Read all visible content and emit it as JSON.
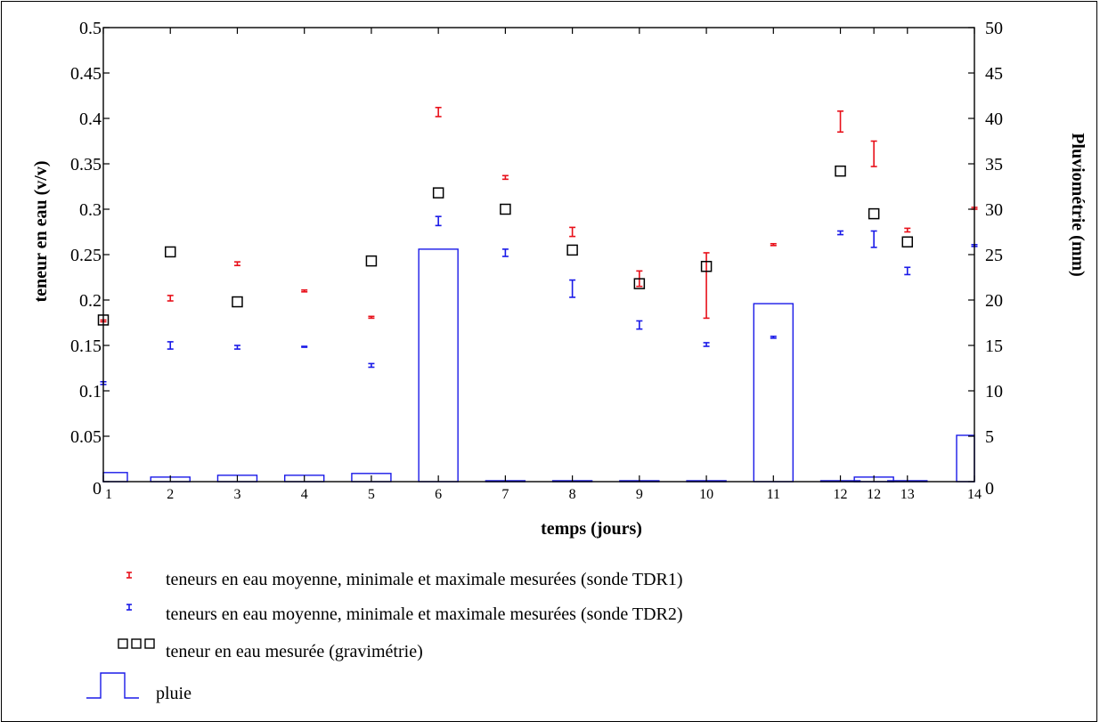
{
  "chart_data": {
    "type": "bar+errorbar+scatter",
    "xlabel": "temps (jours)",
    "ylabel": "teneur en eau (v/v)",
    "y2label": "Pluviométrie (mm)",
    "x_tick_labels": [
      "1",
      "2",
      "3",
      "4",
      "5",
      "6",
      "7",
      "8",
      "9",
      "10",
      "11",
      "12",
      "12",
      "13",
      "14"
    ],
    "ylim": [
      0,
      0.5
    ],
    "y_ticks": [
      "0",
      "0.05",
      "0.1",
      "0.15",
      "0.2",
      "0.25",
      "0.3",
      "0.35",
      "0.4",
      "0.45",
      "0.5"
    ],
    "y2lim": [
      0,
      50
    ],
    "y2_ticks": [
      "0",
      "5",
      "10",
      "15",
      "20",
      "25",
      "30",
      "35",
      "40",
      "45",
      "50"
    ],
    "series": [
      {
        "name": "teneurs en eau moyenne, minimale et maximale mesurées (sonde TDR1)",
        "kind": "errorbar",
        "color": "#e8101a",
        "x": [
          1,
          2,
          3,
          4,
          5,
          6,
          7,
          8,
          9,
          10,
          11,
          12,
          12.5,
          13,
          14
        ],
        "low": [
          0.176,
          0.199,
          0.238,
          0.209,
          0.18,
          0.402,
          0.333,
          0.27,
          0.215,
          0.18,
          0.26,
          0.385,
          0.347,
          0.275,
          0.3
        ],
        "high": [
          0.178,
          0.205,
          0.242,
          0.211,
          0.182,
          0.412,
          0.337,
          0.28,
          0.232,
          0.252,
          0.262,
          0.408,
          0.375,
          0.279,
          0.302
        ]
      },
      {
        "name": "teneurs en eau moyenne, minimale et maximale mesurées (sonde TDR2)",
        "kind": "errorbar",
        "color": "#1a1ae8",
        "x": [
          1,
          2,
          3,
          4,
          5,
          6,
          7,
          8,
          9,
          10,
          11,
          12,
          12.5,
          13,
          14
        ],
        "low": [
          0.107,
          0.146,
          0.146,
          0.148,
          0.126,
          0.282,
          0.248,
          0.203,
          0.168,
          0.149,
          0.158,
          0.272,
          0.258,
          0.228,
          0.259
        ],
        "high": [
          0.11,
          0.154,
          0.15,
          0.149,
          0.13,
          0.292,
          0.256,
          0.222,
          0.177,
          0.153,
          0.16,
          0.276,
          0.276,
          0.236,
          0.261
        ]
      },
      {
        "name": "teneur en eau mesurée (gravimétrie)",
        "kind": "scatter",
        "color": "#000000",
        "x": [
          1,
          2,
          3,
          5,
          6,
          7,
          8,
          9,
          10,
          12,
          12.5,
          13
        ],
        "y": [
          0.178,
          0.253,
          0.198,
          0.243,
          0.318,
          0.3,
          0.255,
          0.218,
          0.237,
          0.342,
          0.295,
          0.264
        ]
      },
      {
        "name": "pluie",
        "kind": "bar",
        "axis": "y2",
        "color": "#1a1ae8",
        "x": [
          1,
          2,
          3,
          4,
          5,
          6,
          7,
          8,
          9,
          10,
          11,
          12,
          12.5,
          13,
          14
        ],
        "values": [
          1.0,
          0.5,
          0.7,
          0.7,
          0.9,
          25.6,
          0.1,
          0.1,
          0.1,
          0.1,
          19.6,
          0.1,
          0.5,
          0.1,
          5.1
        ]
      }
    ],
    "legend": [
      {
        "label": "teneurs en eau moyenne, minimale et maximale mesurées (sonde TDR1)",
        "symbol": "errorbar",
        "color": "#e8101a"
      },
      {
        "label": "teneurs en eau moyenne, minimale et maximale mesurées (sonde TDR2)",
        "symbol": "errorbar",
        "color": "#1a1ae8"
      },
      {
        "label": "teneur en eau mesurée (gravimétrie)",
        "symbol": "squares",
        "color": "#000000"
      },
      {
        "label": "pluie",
        "symbol": "bar",
        "color": "#1a1ae8"
      }
    ],
    "legend_position": "bottom"
  }
}
